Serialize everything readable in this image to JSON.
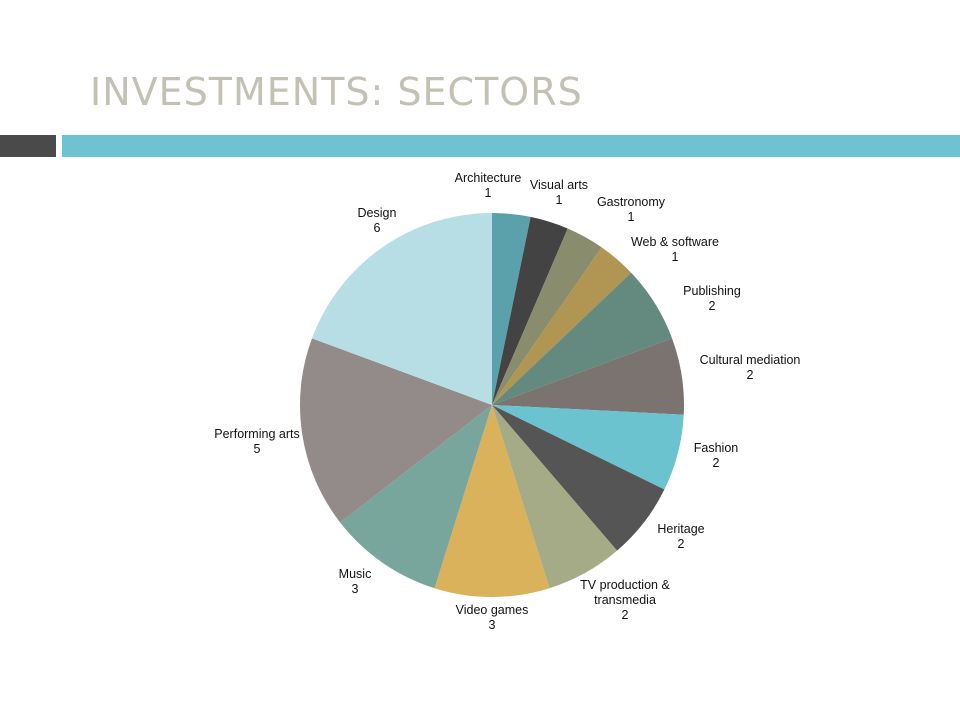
{
  "slide": {
    "title": "INVESTMENTS: SECTORS"
  },
  "colors": {
    "title": "#c3c0b4",
    "accent_bar": "#6dc3d1",
    "dark_bar": "#4a4a4a"
  },
  "chart_data": {
    "type": "pie",
    "title": "",
    "categories": [
      "Architecture",
      "Visual arts",
      "Gastronomy",
      "Web & software",
      "Publishing",
      "Cultural mediation",
      "Fashion",
      "Heritage",
      "TV production & transmedia",
      "Video games",
      "Music",
      "Performing arts",
      "Design"
    ],
    "values": [
      1,
      1,
      1,
      1,
      2,
      2,
      2,
      2,
      2,
      3,
      3,
      5,
      6
    ],
    "labels": [
      [
        "Architecture",
        "1"
      ],
      [
        "Visual arts",
        "1"
      ],
      [
        "Gastronomy",
        "1"
      ],
      [
        "Web & software",
        "1"
      ],
      [
        "Publishing",
        "2"
      ],
      [
        "Cultural mediation",
        "2"
      ],
      [
        "Fashion",
        "2"
      ],
      [
        "Heritage",
        "2"
      ],
      [
        "TV production &",
        "transmedia",
        "2"
      ],
      [
        "Video games",
        "3"
      ],
      [
        "Music",
        "3"
      ],
      [
        "Performing arts",
        "5"
      ],
      [
        "Design",
        "6"
      ]
    ],
    "colors": [
      "#5ba1ac",
      "#434343",
      "#8a8c6e",
      "#b09553",
      "#64897f",
      "#7a7370",
      "#6cc3d0",
      "#555555",
      "#a4ab86",
      "#d9b25b",
      "#79a69c",
      "#938b8a",
      "#b7dde5"
    ],
    "start": "12 o'clock",
    "direction": "clockwise",
    "legend": "none"
  }
}
